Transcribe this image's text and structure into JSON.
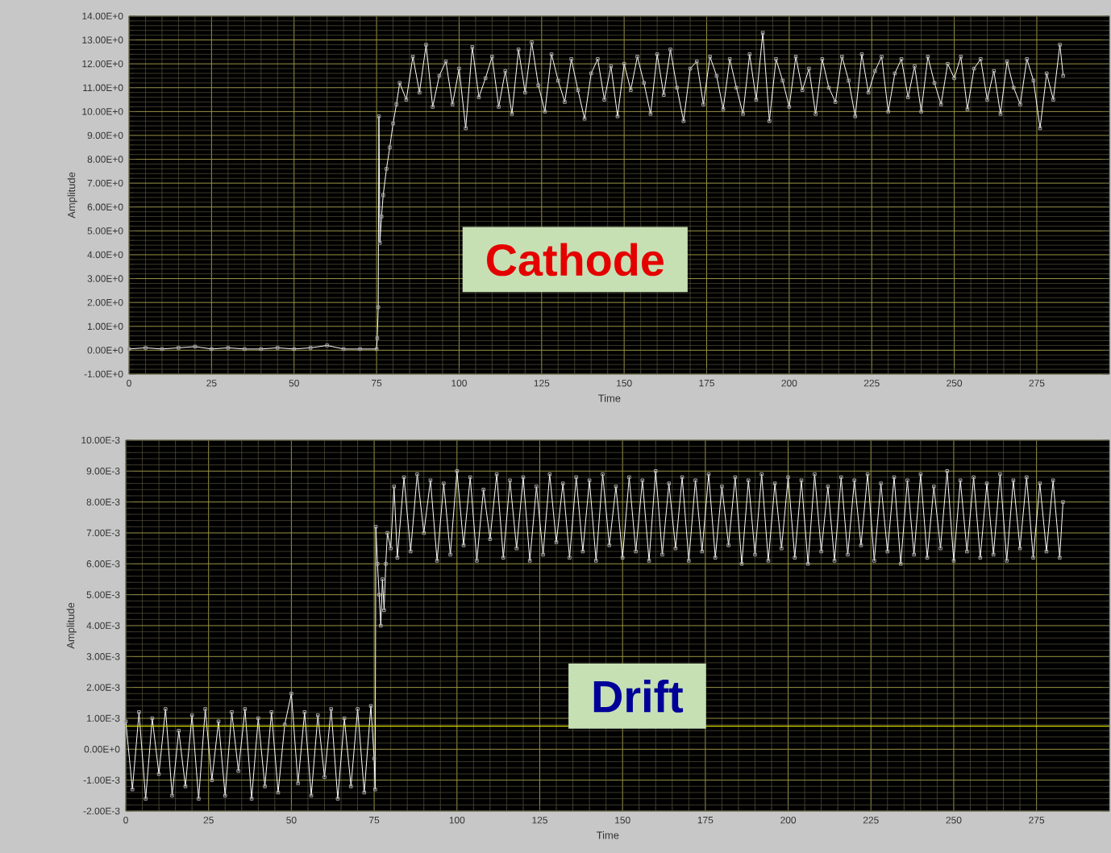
{
  "chart_data": [
    {
      "type": "line",
      "xlabel": "Time",
      "ylabel": "Amplitude",
      "annotations": [
        "Cathode"
      ],
      "grid": true,
      "marker": "square",
      "line_style": "solid",
      "xlim": [
        0,
        297
      ],
      "xticks": [
        0,
        25,
        50,
        75,
        100,
        125,
        150,
        175,
        200,
        225,
        250,
        275
      ],
      "ylim": [
        -1,
        14
      ],
      "yticks": [
        {
          "value": -1,
          "label": "-1.00E+0"
        },
        {
          "value": 0,
          "label": "0.00E+0"
        },
        {
          "value": 1,
          "label": "1.00E+0"
        },
        {
          "value": 2,
          "label": "2.00E+0"
        },
        {
          "value": 3,
          "label": "3.00E+0"
        },
        {
          "value": 4,
          "label": "4.00E+0"
        },
        {
          "value": 5,
          "label": "5.00E+0"
        },
        {
          "value": 6,
          "label": "6.00E+0"
        },
        {
          "value": 7,
          "label": "7.00E+0"
        },
        {
          "value": 8,
          "label": "8.00E+0"
        },
        {
          "value": 9,
          "label": "9.00E+0"
        },
        {
          "value": 10,
          "label": "10.00E+0"
        },
        {
          "value": 11,
          "label": "11.00E+0"
        },
        {
          "value": 12,
          "label": "12.00E+0"
        },
        {
          "value": 13,
          "label": "13.00E+0"
        },
        {
          "value": 14,
          "label": "14.00E+0"
        }
      ],
      "series": [
        {
          "color": "#ffffff",
          "x": [
            0,
            5,
            10,
            15,
            20,
            25,
            30,
            35,
            40,
            45,
            50,
            55,
            60,
            65,
            70,
            75,
            75.2,
            75.5,
            75.7,
            76,
            76.5,
            77,
            78,
            79,
            80,
            81,
            82,
            84,
            86,
            88,
            90,
            92,
            94,
            96,
            98,
            100,
            102,
            104,
            106,
            108,
            110,
            112,
            114,
            116,
            118,
            120,
            122,
            124,
            126,
            128,
            130,
            132,
            134,
            136,
            138,
            140,
            142,
            144,
            146,
            148,
            150,
            152,
            154,
            156,
            158,
            160,
            162,
            164,
            166,
            168,
            170,
            172,
            174,
            176,
            178,
            180,
            182,
            184,
            186,
            188,
            190,
            192,
            194,
            196,
            198,
            200,
            202,
            204,
            206,
            208,
            210,
            212,
            214,
            216,
            218,
            220,
            222,
            224,
            226,
            228,
            230,
            232,
            234,
            236,
            238,
            240,
            242,
            244,
            246,
            248,
            250,
            252,
            254,
            256,
            258,
            260,
            262,
            264,
            266,
            268,
            270,
            272,
            274,
            276,
            278,
            280,
            282,
            283
          ],
          "values": [
            0.05,
            0.1,
            0.05,
            0.1,
            0.15,
            0.05,
            0.1,
            0.05,
            0.05,
            0.1,
            0.05,
            0.1,
            0.2,
            0.05,
            0.05,
            0.05,
            0.5,
            1.8,
            9.8,
            4.5,
            5.6,
            6.5,
            7.6,
            8.5,
            9.5,
            10.3,
            11.2,
            10.5,
            12.3,
            10.8,
            12.8,
            10.2,
            11.5,
            12.1,
            10.3,
            11.8,
            9.3,
            12.7,
            10.6,
            11.4,
            12.3,
            10.2,
            11.7,
            9.9,
            12.6,
            10.8,
            12.9,
            11.1,
            10.0,
            12.4,
            11.3,
            10.4,
            12.2,
            10.9,
            9.7,
            11.6,
            12.2,
            10.5,
            11.9,
            9.8,
            12.0,
            10.9,
            12.3,
            11.2,
            9.9,
            12.4,
            10.7,
            12.6,
            11.0,
            9.6,
            11.8,
            12.1,
            10.3,
            12.3,
            11.5,
            10.1,
            12.2,
            11.0,
            9.9,
            12.4,
            10.5,
            13.3,
            9.6,
            12.2,
            11.3,
            10.2,
            12.3,
            10.9,
            11.8,
            9.9,
            12.2,
            11.0,
            10.4,
            12.3,
            11.3,
            9.8,
            12.4,
            10.8,
            11.7,
            12.3,
            10.0,
            11.6,
            12.2,
            10.6,
            11.9,
            10.0,
            12.3,
            11.2,
            10.3,
            12.0,
            11.4,
            12.3,
            10.1,
            11.8,
            12.2,
            10.5,
            11.7,
            9.9,
            12.1,
            11.0,
            10.3,
            12.2,
            11.3,
            9.3,
            11.6,
            10.5,
            12.8,
            11.5
          ]
        }
      ]
    },
    {
      "type": "line",
      "xlabel": "Time",
      "ylabel": "Amplitude",
      "annotations": [
        "Drift"
      ],
      "grid": true,
      "marker": "square",
      "line_style": "solid",
      "xlim": [
        0,
        297
      ],
      "xticks": [
        0,
        25,
        50,
        75,
        100,
        125,
        150,
        175,
        200,
        225,
        250,
        275
      ],
      "ylim": [
        -0.002,
        0.01
      ],
      "yticks": [
        {
          "value": -0.002,
          "label": "-2.00E-3"
        },
        {
          "value": -0.001,
          "label": "-1.00E-3"
        },
        {
          "value": 0,
          "label": "0.00E+0"
        },
        {
          "value": 0.001,
          "label": "1.00E-3"
        },
        {
          "value": 0.002,
          "label": "2.00E-3"
        },
        {
          "value": 0.003,
          "label": "3.00E-3"
        },
        {
          "value": 0.004,
          "label": "4.00E-3"
        },
        {
          "value": 0.005,
          "label": "5.00E-3"
        },
        {
          "value": 0.006,
          "label": "6.00E-3"
        },
        {
          "value": 0.007,
          "label": "7.00E-3"
        },
        {
          "value": 0.008,
          "label": "8.00E-3"
        },
        {
          "value": 0.009,
          "label": "9.00E-3"
        },
        {
          "value": 0.01,
          "label": "10.00E-3"
        }
      ],
      "ref_lines": [
        {
          "axis": "y",
          "value": 0.00075,
          "color": "#e0e000"
        }
      ],
      "series": [
        {
          "color": "#ffffff",
          "x": [
            0,
            2,
            4,
            6,
            8,
            10,
            12,
            14,
            16,
            18,
            20,
            22,
            24,
            26,
            28,
            30,
            32,
            34,
            36,
            38,
            40,
            42,
            44,
            46,
            48,
            50,
            52,
            54,
            56,
            58,
            60,
            62,
            64,
            66,
            68,
            70,
            72,
            74,
            75,
            75.3,
            75.5,
            76,
            76.5,
            77,
            77.5,
            78,
            78.5,
            79,
            80,
            81,
            82,
            84,
            86,
            88,
            90,
            92,
            94,
            96,
            98,
            100,
            102,
            104,
            106,
            108,
            110,
            112,
            114,
            116,
            118,
            120,
            122,
            124,
            126,
            128,
            130,
            132,
            134,
            136,
            138,
            140,
            142,
            144,
            146,
            148,
            150,
            152,
            154,
            156,
            158,
            160,
            162,
            164,
            166,
            168,
            170,
            172,
            174,
            176,
            178,
            180,
            182,
            184,
            186,
            188,
            190,
            192,
            194,
            196,
            198,
            200,
            202,
            204,
            206,
            208,
            210,
            212,
            214,
            216,
            218,
            220,
            222,
            224,
            226,
            228,
            230,
            232,
            234,
            236,
            238,
            240,
            242,
            244,
            246,
            248,
            250,
            252,
            254,
            256,
            258,
            260,
            262,
            264,
            266,
            268,
            270,
            272,
            274,
            276,
            278,
            280,
            282,
            283
          ],
          "values": [
            0.0009,
            -0.0013,
            0.0012,
            -0.0016,
            0.001,
            -0.0008,
            0.0013,
            -0.0015,
            0.0006,
            -0.0012,
            0.0011,
            -0.0016,
            0.0013,
            -0.001,
            0.0009,
            -0.0015,
            0.0012,
            -0.0007,
            0.0013,
            -0.0016,
            0.001,
            -0.0012,
            0.0012,
            -0.0014,
            0.0008,
            0.0018,
            -0.0011,
            0.0012,
            -0.0015,
            0.0011,
            -0.0009,
            0.0013,
            -0.0016,
            0.001,
            -0.0012,
            0.0013,
            -0.0014,
            0.0014,
            -0.0003,
            -0.0013,
            0.0072,
            0.006,
            0.005,
            0.004,
            0.0055,
            0.0045,
            0.006,
            0.007,
            0.0065,
            0.0085,
            0.0062,
            0.0088,
            0.0064,
            0.0089,
            0.007,
            0.0087,
            0.0061,
            0.0086,
            0.0063,
            0.009,
            0.0066,
            0.0088,
            0.0061,
            0.0084,
            0.0068,
            0.0089,
            0.0062,
            0.0087,
            0.0065,
            0.0088,
            0.0061,
            0.0085,
            0.0063,
            0.0089,
            0.0067,
            0.0086,
            0.0062,
            0.0088,
            0.0064,
            0.0087,
            0.0061,
            0.0089,
            0.0066,
            0.0085,
            0.0062,
            0.0088,
            0.0064,
            0.0087,
            0.0061,
            0.009,
            0.0063,
            0.0086,
            0.0065,
            0.0088,
            0.0061,
            0.0087,
            0.0064,
            0.0089,
            0.0062,
            0.0085,
            0.0066,
            0.0088,
            0.006,
            0.0087,
            0.0063,
            0.0089,
            0.0061,
            0.0086,
            0.0065,
            0.0088,
            0.0062,
            0.0087,
            0.006,
            0.0089,
            0.0064,
            0.0085,
            0.0061,
            0.0088,
            0.0063,
            0.0087,
            0.0066,
            0.0089,
            0.0061,
            0.0086,
            0.0064,
            0.0088,
            0.006,
            0.0087,
            0.0063,
            0.0089,
            0.0062,
            0.0085,
            0.0065,
            0.009,
            0.0061,
            0.0087,
            0.0064,
            0.0088,
            0.0062,
            0.0086,
            0.0063,
            0.0089,
            0.0061,
            0.0087,
            0.0065,
            0.0088,
            0.0062,
            0.0086,
            0.0064,
            0.0087,
            0.0062,
            0.008
          ]
        }
      ]
    }
  ]
}
